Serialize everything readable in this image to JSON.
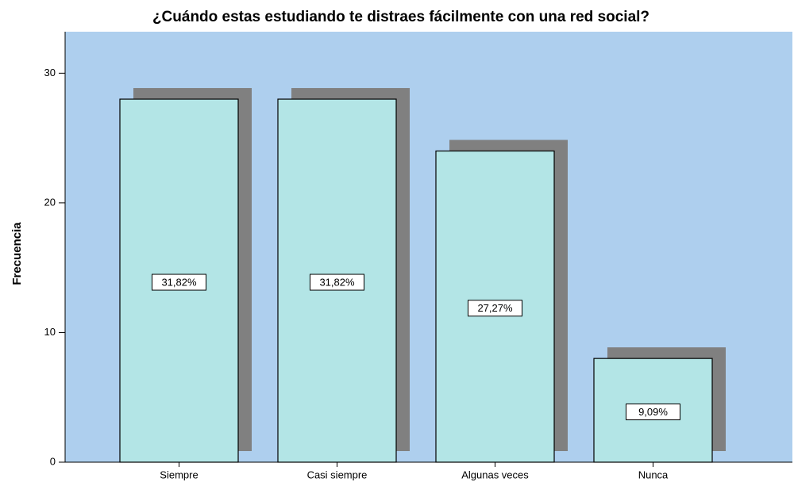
{
  "chart_data": {
    "type": "bar",
    "title": "¿Cuándo estas estudiando te distraes fácilmente con una red social?",
    "y_label": "Frecuencia",
    "categories": [
      "Siempre",
      "Casi siempre",
      "Algunas veces",
      "Nunca"
    ],
    "values": [
      28,
      28,
      24,
      8
    ],
    "percent_labels": [
      "31,82%",
      "31,82%",
      "27,27%",
      "9,09%"
    ],
    "color": "#b3e5e6",
    "shadow_color": "#808080",
    "background": "#aecfee",
    "ylim": [
      0,
      33.2
    ],
    "yticks": [
      0,
      10,
      20,
      30
    ]
  }
}
